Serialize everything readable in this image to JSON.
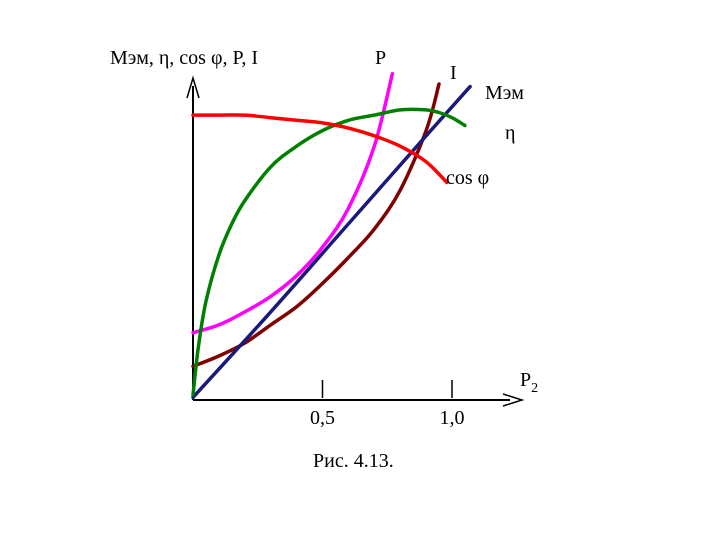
{
  "figure": {
    "caption": "Рис. 4.13."
  },
  "chart_data": {
    "type": "line",
    "ylabel": "Mэм, η, cos φ, P, I",
    "xlabel": "P2",
    "xlabel_main": "P",
    "xlabel_sub": "2",
    "xticks": [
      {
        "value": 0.5,
        "label": "0,5"
      },
      {
        "value": 1.0,
        "label": "1,0"
      }
    ],
    "xlim": [
      0,
      1.25
    ],
    "ylim": [
      0,
      1.25
    ],
    "grid": false,
    "series": [
      {
        "name": "P",
        "color": "#ff00ff",
        "x": [
          0,
          0.1,
          0.2,
          0.3,
          0.4,
          0.5,
          0.6,
          0.7,
          0.77
        ],
        "y": [
          0.26,
          0.29,
          0.34,
          0.4,
          0.48,
          0.59,
          0.74,
          0.98,
          1.26
        ]
      },
      {
        "name": "I",
        "color": "#800000",
        "x": [
          0,
          0.1,
          0.2,
          0.3,
          0.4,
          0.5,
          0.6,
          0.7,
          0.8,
          0.9,
          0.95
        ],
        "y": [
          0.13,
          0.17,
          0.22,
          0.29,
          0.36,
          0.45,
          0.55,
          0.66,
          0.81,
          1.04,
          1.22
        ]
      },
      {
        "name": "Mэм",
        "color": "#1a1a7e",
        "x": [
          0,
          0.3,
          0.6,
          0.9,
          1.07
        ],
        "y": [
          0.01,
          0.34,
          0.68,
          1.02,
          1.21
        ]
      },
      {
        "name": "η",
        "color": "#008000",
        "x": [
          0,
          0.02,
          0.05,
          0.1,
          0.15,
          0.2,
          0.3,
          0.4,
          0.5,
          0.6,
          0.7,
          0.8,
          0.9,
          0.95,
          1.0,
          1.05
        ],
        "y": [
          0.02,
          0.2,
          0.38,
          0.56,
          0.68,
          0.77,
          0.9,
          0.98,
          1.04,
          1.08,
          1.1,
          1.12,
          1.12,
          1.11,
          1.09,
          1.06
        ]
      },
      {
        "name": "cos φ",
        "color": "#ff0000",
        "x": [
          0,
          0.1,
          0.2,
          0.3,
          0.4,
          0.5,
          0.6,
          0.7,
          0.8,
          0.9,
          0.98
        ],
        "y": [
          1.1,
          1.1,
          1.1,
          1.09,
          1.08,
          1.07,
          1.05,
          1.02,
          0.98,
          0.92,
          0.84
        ]
      }
    ]
  }
}
